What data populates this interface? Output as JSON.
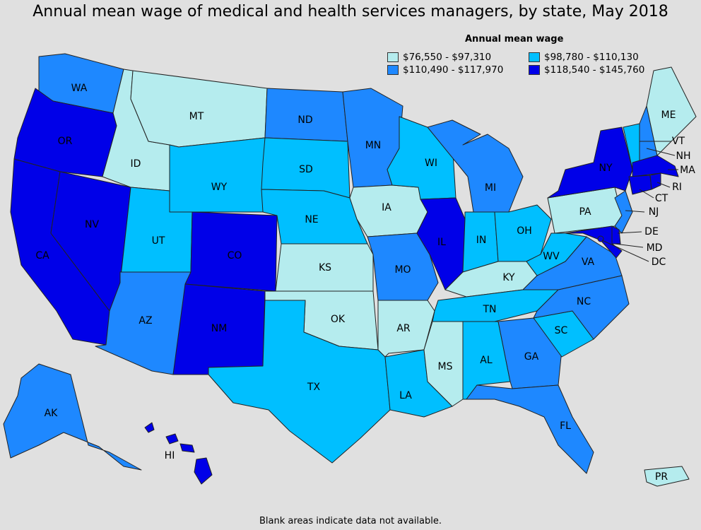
{
  "title": "Annual mean wage of medical and health services managers, by state, May 2018",
  "legend": {
    "title": "Annual mean wage",
    "items": [
      {
        "label": "$76,550 - $97,310",
        "color": "#b5ecee"
      },
      {
        "label": "$98,780 - $110,130",
        "color": "#00bfff"
      },
      {
        "label": "$110,490 - $117,970",
        "color": "#1e88ff"
      },
      {
        "label": "$118,540 - $145,760",
        "color": "#0000e8"
      }
    ]
  },
  "footnote": "Blank areas indicate data not available.",
  "states": {
    "WA": {
      "label": "WA",
      "tier": 2
    },
    "OR": {
      "label": "OR",
      "tier": 3
    },
    "CA": {
      "label": "CA",
      "tier": 3
    },
    "NV": {
      "label": "NV",
      "tier": 3
    },
    "ID": {
      "label": "ID",
      "tier": 0
    },
    "MT": {
      "label": "MT",
      "tier": 0
    },
    "WY": {
      "label": "WY",
      "tier": 1
    },
    "UT": {
      "label": "UT",
      "tier": 1
    },
    "AZ": {
      "label": "AZ",
      "tier": 2
    },
    "CO": {
      "label": "CO",
      "tier": 3
    },
    "NM": {
      "label": "NM",
      "tier": 3
    },
    "ND": {
      "label": "ND",
      "tier": 2
    },
    "SD": {
      "label": "SD",
      "tier": 1
    },
    "NE": {
      "label": "NE",
      "tier": 1
    },
    "KS": {
      "label": "KS",
      "tier": 0
    },
    "OK": {
      "label": "OK",
      "tier": 0
    },
    "TX": {
      "label": "TX",
      "tier": 1
    },
    "MN": {
      "label": "MN",
      "tier": 2
    },
    "IA": {
      "label": "IA",
      "tier": 0
    },
    "MO": {
      "label": "MO",
      "tier": 2
    },
    "AR": {
      "label": "AR",
      "tier": 0
    },
    "LA": {
      "label": "LA",
      "tier": 1
    },
    "WI": {
      "label": "WI",
      "tier": 1
    },
    "IL": {
      "label": "IL",
      "tier": 3
    },
    "MI": {
      "label": "MI",
      "tier": 2
    },
    "IN": {
      "label": "IN",
      "tier": 1
    },
    "OH": {
      "label": "OH",
      "tier": 1
    },
    "KY": {
      "label": "KY",
      "tier": 0
    },
    "TN": {
      "label": "TN",
      "tier": 1
    },
    "MS": {
      "label": "MS",
      "tier": 0
    },
    "AL": {
      "label": "AL",
      "tier": 1
    },
    "GA": {
      "label": "GA",
      "tier": 2
    },
    "FL": {
      "label": "FL",
      "tier": 2
    },
    "SC": {
      "label": "SC",
      "tier": 1
    },
    "NC": {
      "label": "NC",
      "tier": 2
    },
    "VA": {
      "label": "VA",
      "tier": 2
    },
    "WV": {
      "label": "WV",
      "tier": 1
    },
    "PA": {
      "label": "PA",
      "tier": 0
    },
    "NY": {
      "label": "NY",
      "tier": 3
    },
    "VT": {
      "label": "VT",
      "tier": 1
    },
    "NH": {
      "label": "NH",
      "tier": 2
    },
    "ME": {
      "label": "ME",
      "tier": 0
    },
    "MA": {
      "label": "MA",
      "tier": 3
    },
    "RI": {
      "label": "RI",
      "tier": 3
    },
    "CT": {
      "label": "CT",
      "tier": 3
    },
    "NJ": {
      "label": "NJ",
      "tier": 2
    },
    "DE": {
      "label": "DE",
      "tier": 3
    },
    "MD": {
      "label": "MD",
      "tier": 3
    },
    "DC": {
      "label": "DC",
      "tier": 3
    },
    "AK": {
      "label": "AK",
      "tier": 2
    },
    "HI": {
      "label": "HI",
      "tier": 3
    },
    "PR": {
      "label": "PR",
      "tier": 0
    }
  }
}
